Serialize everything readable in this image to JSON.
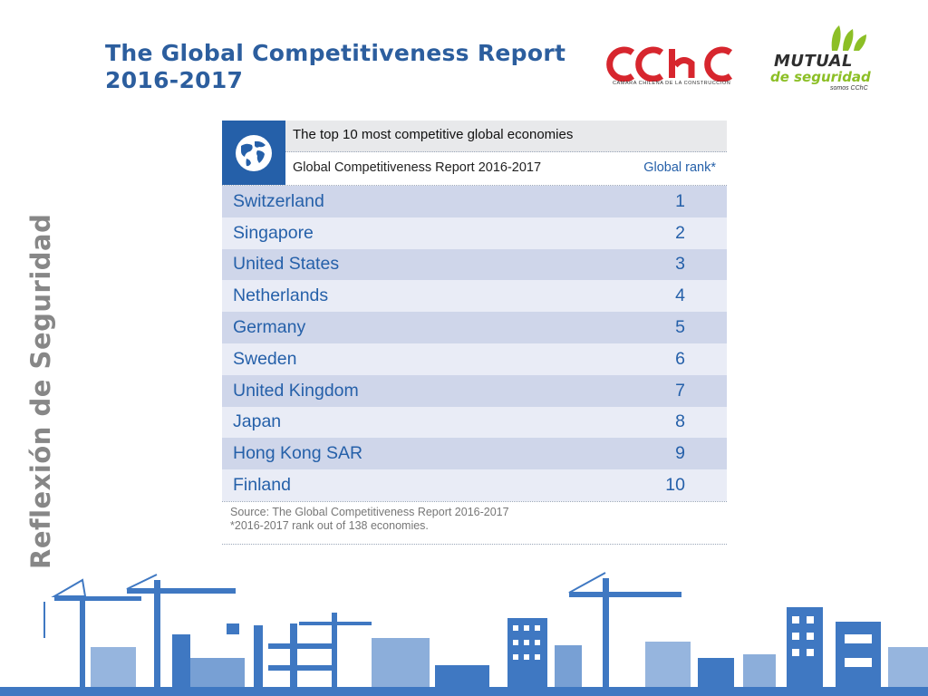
{
  "title": {
    "line1": "The Global Competitiveness Report",
    "line2": "2016-2017"
  },
  "side_label": "Reflexión de Seguridad",
  "logos": {
    "cchc": {
      "mark": "CChC",
      "subtitle": "CAMARA CHILENA DE LA CONSTRUCCION"
    },
    "mutual": {
      "line1": "MUTUAL",
      "line2": "de seguridad",
      "tagline": "somos CChC"
    }
  },
  "table": {
    "heading": "The top 10 most competitive global economies",
    "subheading": "Global Competitiveness Report 2016-2017",
    "rank_header": "Global rank*",
    "rows": [
      {
        "country": "Switzerland",
        "rank": "1"
      },
      {
        "country": "Singapore",
        "rank": "2"
      },
      {
        "country": "United States",
        "rank": "3"
      },
      {
        "country": "Netherlands",
        "rank": "4"
      },
      {
        "country": "Germany",
        "rank": "5"
      },
      {
        "country": "Sweden",
        "rank": "6"
      },
      {
        "country": "United Kingdom",
        "rank": "7"
      },
      {
        "country": "Japan",
        "rank": "8"
      },
      {
        "country": "Hong Kong SAR",
        "rank": "9"
      },
      {
        "country": "Finland",
        "rank": "10"
      }
    ],
    "source_line1": "Source: The Global Competitiveness Report 2016-2017",
    "source_line2": "*2016-2017 rank out of 138 economies."
  },
  "colors": {
    "title_blue": "#2c5e9e",
    "table_blue": "#2560a9",
    "row_dark": "#cfd6ea",
    "row_light": "#e9ecf6",
    "cchc_red": "#d7262e",
    "mutual_green": "#8cbf26",
    "skyline": "#3f78c2"
  },
  "icons": [
    "globe-icon"
  ]
}
